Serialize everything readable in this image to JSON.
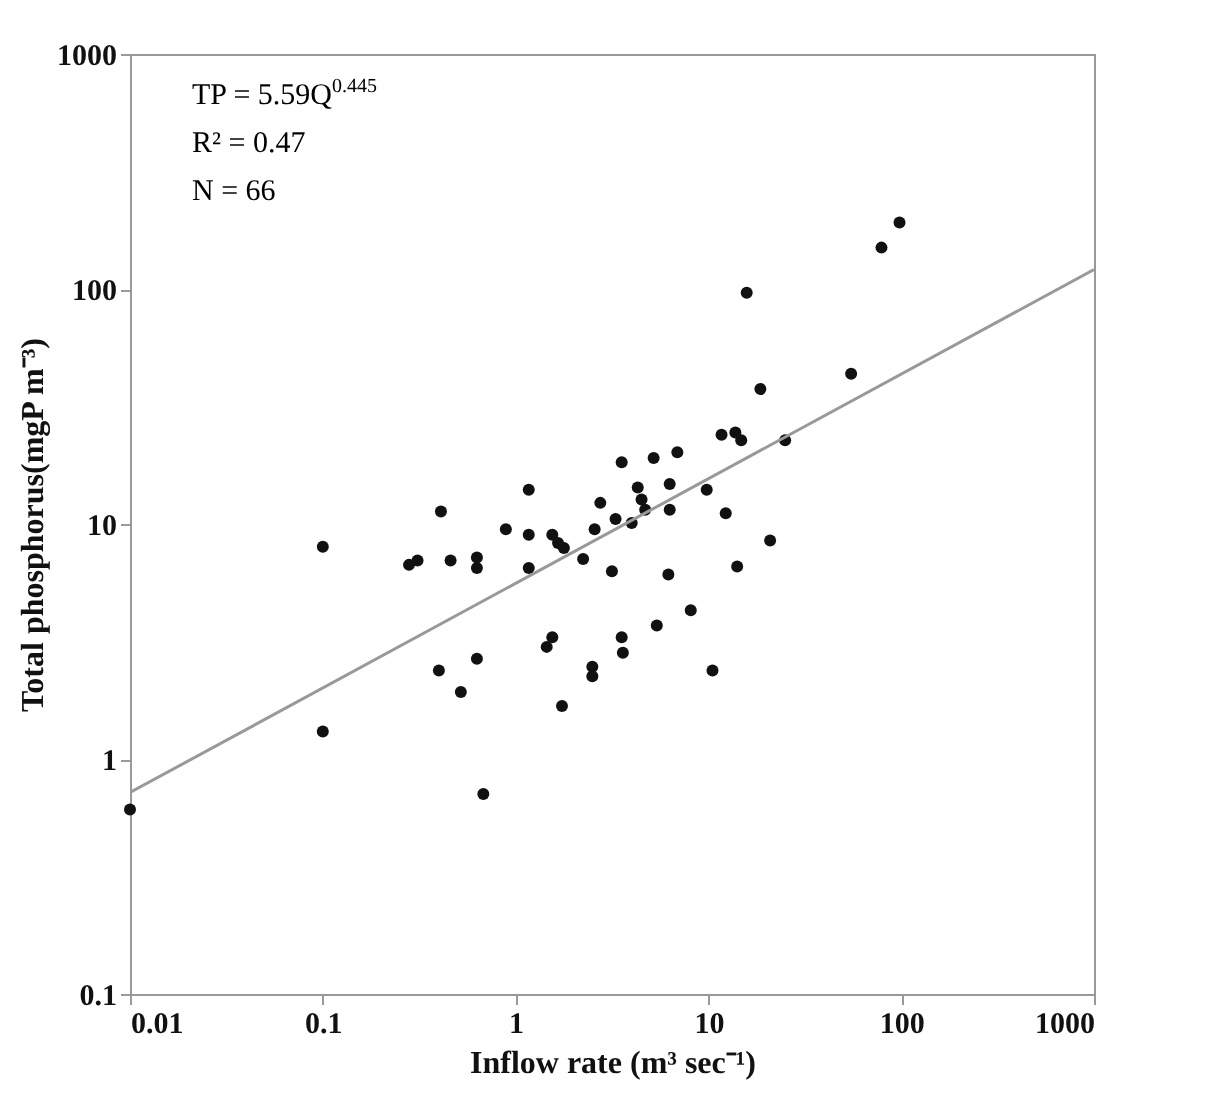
{
  "chart_data": {
    "type": "scatter",
    "xlabel": "Inflow rate (m³ sec⁻¹)",
    "ylabel": "Total phosphorus(mgP m⁻³)",
    "annotations": [
      "TP = 5.59Q$^{0.445}$",
      "R² = 0.47",
      "N = 66"
    ],
    "log": "xy",
    "xlim": [
      0.01,
      1000
    ],
    "ylim": [
      0.1,
      1000
    ],
    "xticks": [
      0.01,
      0.1,
      1,
      10,
      100,
      1000
    ],
    "yticks": [
      0.1,
      1,
      10,
      100,
      1000
    ],
    "grid": false,
    "marker": "circle",
    "series": [
      {
        "color": "#111111",
        "x": [
          0.01,
          0.1,
          0.1,
          0.41,
          0.28,
          0.31,
          0.46,
          0.4,
          0.52,
          0.68,
          0.63,
          0.63,
          0.63,
          1.17,
          0.89,
          1.17,
          1.17,
          1.55,
          1.66,
          1.78,
          2.24,
          1.55,
          1.45,
          1.74,
          2.5,
          2.5,
          2.75,
          2.57,
          3.16,
          3.55,
          3.3,
          3.55,
          3.6,
          4.0,
          4.3,
          4.5,
          4.7,
          5.2,
          6.9,
          6.3,
          6.3,
          6.2,
          5.4,
          8.1,
          9.8,
          10.5,
          12.3,
          14.1,
          20.9,
          11.7,
          13.8,
          14.8,
          25,
          98,
          79,
          15.8,
          18.6,
          55
        ],
        "values": [
          0.61,
          8.0,
          1.31,
          11.3,
          6.7,
          7.0,
          7.0,
          2.38,
          1.93,
          0.71,
          2.67,
          7.2,
          6.5,
          14.0,
          9.5,
          9.0,
          6.5,
          9.0,
          8.3,
          7.9,
          7.1,
          3.3,
          3.0,
          1.68,
          2.47,
          2.25,
          12.3,
          9.5,
          6.3,
          18.3,
          10.5,
          3.3,
          2.83,
          10.1,
          14.3,
          12.7,
          11.5,
          19.1,
          20.2,
          14.8,
          11.5,
          6.1,
          3.7,
          4.3,
          14.0,
          2.38,
          11.1,
          6.6,
          8.5,
          24.0,
          24.5,
          22.7,
          22.7,
          192,
          150,
          96.5,
          37.5,
          43.6
        ]
      },
      {
        "type": "line",
        "color": "#999999",
        "line_style": "solid",
        "marker": "none",
        "x": [
          0.01,
          1000
        ],
        "values": [
          0.72,
          121
        ]
      }
    ]
  }
}
